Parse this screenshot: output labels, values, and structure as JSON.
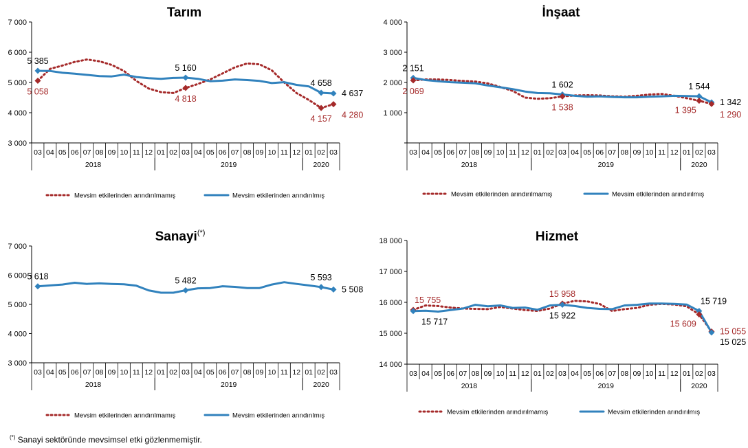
{
  "colors": {
    "raw": "#A52A2A",
    "sa": "#3182BD",
    "axis": "#000000",
    "label_raw": "#A52A2A",
    "label_sa": "#000000"
  },
  "footnote": {
    "mark": "(*)",
    "text": " Sanayi sektöründe mevsimsel etki gözlenmemiştir."
  },
  "chart_data": [
    {
      "type": "line",
      "title": "Tarım",
      "title_sup": "",
      "ylim": [
        3000,
        7000
      ],
      "yticks": [
        "3 000",
        "4 000",
        "5 000",
        "6 000",
        "7 000"
      ],
      "ytick_values": [
        3000,
        4000,
        5000,
        6000,
        7000
      ],
      "x": [
        "03",
        "04",
        "05",
        "06",
        "07",
        "08",
        "09",
        "10",
        "11",
        "12",
        "01",
        "02",
        "03",
        "04",
        "05",
        "06",
        "07",
        "08",
        "09",
        "10",
        "11",
        "12",
        "01",
        "02",
        "03"
      ],
      "years": [
        {
          "label": "2018",
          "start": 0,
          "end": 9
        },
        {
          "label": "2019",
          "start": 10,
          "end": 21
        },
        {
          "label": "2020",
          "start": 22,
          "end": 24
        }
      ],
      "legend": [
        "Mevsim etkilerinden arındırılmamış",
        "Mevsim etkilerinden arındırılmış"
      ],
      "series": [
        {
          "name": "Mevsim etkilerinden arındırılmamış",
          "style": "dotted",
          "values": [
            5058,
            5450,
            5560,
            5680,
            5760,
            5700,
            5580,
            5380,
            5050,
            4800,
            4680,
            4650,
            4818,
            4950,
            5100,
            5300,
            5500,
            5630,
            5600,
            5400,
            5000,
            4650,
            4420,
            4157,
            4280
          ]
        },
        {
          "name": "Mevsim etkilerinden arındırılmış",
          "style": "solid",
          "values": [
            5385,
            5380,
            5320,
            5290,
            5250,
            5210,
            5200,
            5260,
            5180,
            5140,
            5120,
            5150,
            5160,
            5120,
            5040,
            5060,
            5100,
            5080,
            5050,
            4980,
            5010,
            4920,
            4870,
            4658,
            4637
          ]
        }
      ],
      "labels": [
        {
          "i": 0,
          "series": 1,
          "text": "5 385",
          "pos": "above"
        },
        {
          "i": 0,
          "series": 0,
          "text": "5 058",
          "pos": "below"
        },
        {
          "i": 12,
          "series": 1,
          "text": "5 160",
          "pos": "above"
        },
        {
          "i": 12,
          "series": 0,
          "text": "4 818",
          "pos": "below"
        },
        {
          "i": 23,
          "series": 1,
          "text": "4 658",
          "pos": "above"
        },
        {
          "i": 23,
          "series": 0,
          "text": "4 157",
          "pos": "below"
        },
        {
          "i": 24,
          "series": 1,
          "text": "4 637",
          "pos": "right"
        },
        {
          "i": 24,
          "series": 0,
          "text": "4 280",
          "pos": "belowright"
        }
      ]
    },
    {
      "type": "line",
      "title": "İnşaat",
      "title_sup": "",
      "ylim": [
        0,
        4000
      ],
      "yticks": [
        "",
        "1 000",
        "2 000",
        "3 000",
        "4 000"
      ],
      "ytick_values": [
        0,
        1000,
        2000,
        3000,
        4000
      ],
      "x": [
        "03",
        "04",
        "05",
        "06",
        "07",
        "08",
        "09",
        "10",
        "11",
        "12",
        "01",
        "02",
        "03",
        "04",
        "05",
        "06",
        "07",
        "08",
        "09",
        "10",
        "11",
        "12",
        "01",
        "02",
        "03"
      ],
      "years": [
        {
          "label": "2018",
          "start": 0,
          "end": 9
        },
        {
          "label": "2019",
          "start": 10,
          "end": 21
        },
        {
          "label": "2020",
          "start": 22,
          "end": 24
        }
      ],
      "legend": [
        "Mevsim etkilerinden arındırılmamış",
        "Mevsim etkilerinden arındırılmış"
      ],
      "series": [
        {
          "name": "Mevsim etkilerinden arındırılmamış",
          "style": "dotted",
          "values": [
            2069,
            2100,
            2100,
            2080,
            2050,
            2030,
            1970,
            1850,
            1720,
            1500,
            1460,
            1480,
            1538,
            1570,
            1580,
            1570,
            1540,
            1530,
            1560,
            1600,
            1620,
            1560,
            1480,
            1395,
            1290
          ]
        },
        {
          "name": "Mevsim etkilerinden arındırılmış",
          "style": "solid",
          "values": [
            2151,
            2080,
            2040,
            2010,
            1990,
            1970,
            1900,
            1840,
            1780,
            1700,
            1650,
            1640,
            1602,
            1560,
            1530,
            1540,
            1520,
            1510,
            1510,
            1530,
            1540,
            1560,
            1550,
            1544,
            1342
          ]
        }
      ],
      "labels": [
        {
          "i": 0,
          "series": 1,
          "text": "2 151",
          "pos": "above"
        },
        {
          "i": 0,
          "series": 0,
          "text": "2 069",
          "pos": "below"
        },
        {
          "i": 12,
          "series": 1,
          "text": "1 602",
          "pos": "above"
        },
        {
          "i": 12,
          "series": 0,
          "text": "1 538",
          "pos": "below"
        },
        {
          "i": 23,
          "series": 1,
          "text": "1 544",
          "pos": "above"
        },
        {
          "i": 23,
          "series": 0,
          "text": "1 395",
          "pos": "belowleft"
        },
        {
          "i": 24,
          "series": 1,
          "text": "1 342",
          "pos": "right"
        },
        {
          "i": 24,
          "series": 0,
          "text": "1 290",
          "pos": "belowright"
        }
      ]
    },
    {
      "type": "line",
      "title": "Sanayi",
      "title_sup": "(*)",
      "ylim": [
        3000,
        7000
      ],
      "yticks": [
        "3 000",
        "4 000",
        "5 000",
        "6 000",
        "7 000"
      ],
      "ytick_values": [
        3000,
        4000,
        5000,
        6000,
        7000
      ],
      "x": [
        "03",
        "04",
        "05",
        "06",
        "07",
        "08",
        "09",
        "10",
        "11",
        "12",
        "01",
        "02",
        "03",
        "04",
        "05",
        "06",
        "07",
        "08",
        "09",
        "10",
        "11",
        "12",
        "01",
        "02",
        "03"
      ],
      "years": [
        {
          "label": "2018",
          "start": 0,
          "end": 9
        },
        {
          "label": "2019",
          "start": 10,
          "end": 21
        },
        {
          "label": "2020",
          "start": 22,
          "end": 24
        }
      ],
      "legend": [
        "Mevsim etkilerinden arındırılmamış",
        "Mevsim etkilerinden arındırılmış"
      ],
      "series": [
        {
          "name": "Mevsim etkilerinden arındırılmış",
          "style": "solid",
          "values": [
            5618,
            5650,
            5680,
            5740,
            5700,
            5720,
            5700,
            5690,
            5640,
            5480,
            5400,
            5400,
            5482,
            5550,
            5560,
            5620,
            5600,
            5560,
            5560,
            5680,
            5760,
            5700,
            5650,
            5593,
            5508
          ]
        }
      ],
      "labels": [
        {
          "i": 0,
          "series": 0,
          "text": "5 618",
          "pos": "above"
        },
        {
          "i": 12,
          "series": 0,
          "text": "5 482",
          "pos": "above"
        },
        {
          "i": 23,
          "series": 0,
          "text": "5 593",
          "pos": "above"
        },
        {
          "i": 24,
          "series": 0,
          "text": "5 508",
          "pos": "right"
        }
      ]
    },
    {
      "type": "line",
      "title": "Hizmet",
      "title_sup": "",
      "ylim": [
        14000,
        18000
      ],
      "yticks": [
        "14 000",
        "15 000",
        "16 000",
        "17 000",
        "18 000"
      ],
      "ytick_values": [
        14000,
        15000,
        16000,
        17000,
        18000
      ],
      "x": [
        "03",
        "04",
        "05",
        "06",
        "07",
        "08",
        "09",
        "10",
        "11",
        "12",
        "01",
        "02",
        "03",
        "04",
        "05",
        "06",
        "07",
        "08",
        "09",
        "10",
        "11",
        "12",
        "01",
        "02",
        "03"
      ],
      "years": [
        {
          "label": "2018",
          "start": 0,
          "end": 9
        },
        {
          "label": "2019",
          "start": 10,
          "end": 21
        },
        {
          "label": "2020",
          "start": 22,
          "end": 24
        }
      ],
      "legend": [
        "Mevsim etkilerinden arındırılmamış",
        "Mevsim etkilerinden arındırılmış"
      ],
      "series": [
        {
          "name": "Mevsim etkilerinden arındırılmamış",
          "style": "dotted",
          "values": [
            15755,
            15900,
            15880,
            15830,
            15800,
            15790,
            15780,
            15850,
            15800,
            15750,
            15720,
            15800,
            15958,
            16050,
            16030,
            15950,
            15720,
            15780,
            15820,
            15920,
            15950,
            15930,
            15870,
            15609,
            15055
          ]
        },
        {
          "name": "Mevsim etkilerinden arındırılmış",
          "style": "solid",
          "values": [
            15717,
            15730,
            15700,
            15750,
            15800,
            15920,
            15870,
            15900,
            15820,
            15830,
            15760,
            15900,
            15922,
            15880,
            15820,
            15790,
            15780,
            15900,
            15920,
            15960,
            15960,
            15950,
            15930,
            15719,
            15025
          ]
        }
      ],
      "labels": [
        {
          "i": 0,
          "series": 0,
          "text": "15 755",
          "pos": "aboveright"
        },
        {
          "i": 0,
          "series": 1,
          "text": "15 717",
          "pos": "belowright"
        },
        {
          "i": 12,
          "series": 0,
          "text": "15 958",
          "pos": "above"
        },
        {
          "i": 12,
          "series": 1,
          "text": "15 922",
          "pos": "below"
        },
        {
          "i": 23,
          "series": 1,
          "text": "15 719",
          "pos": "aboveright"
        },
        {
          "i": 23,
          "series": 0,
          "text": "15 609",
          "pos": "belowleft"
        },
        {
          "i": 24,
          "series": 0,
          "text": "15 055",
          "pos": "right"
        },
        {
          "i": 24,
          "series": 1,
          "text": "15 025",
          "pos": "belowright2"
        }
      ]
    }
  ]
}
